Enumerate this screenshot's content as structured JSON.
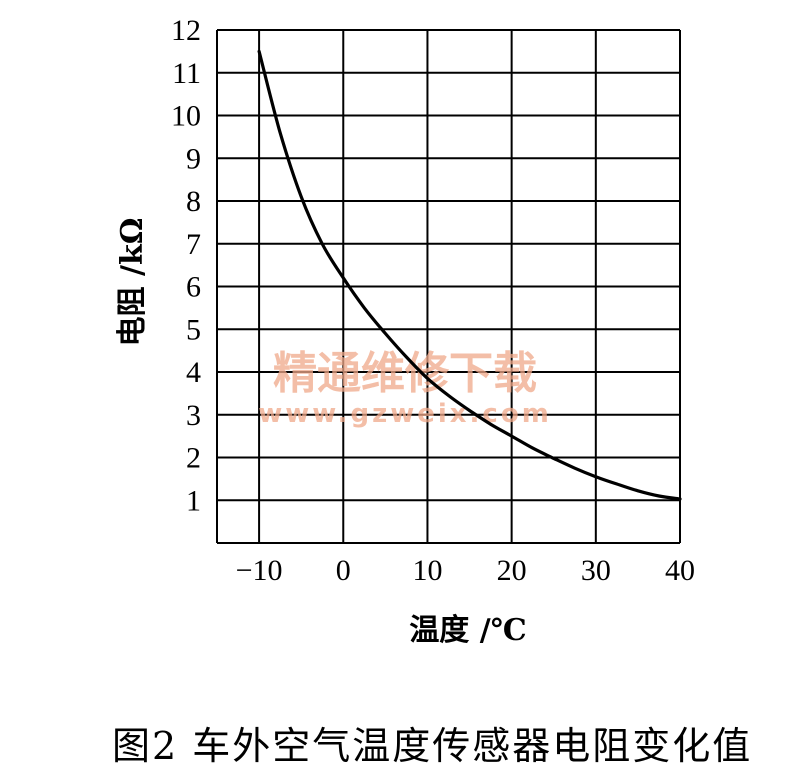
{
  "chart_data": {
    "type": "line",
    "xlabel": "温度 /℃",
    "ylabel": "电阻 /kΩ",
    "xlim": [
      -15,
      40
    ],
    "ylim": [
      0,
      12
    ],
    "x_ticks": [
      "-10",
      "0",
      "10",
      "20",
      "30",
      "40"
    ],
    "y_ticks": [
      "1",
      "2",
      "3",
      "4",
      "5",
      "6",
      "7",
      "8",
      "9",
      "10",
      "11",
      "12"
    ],
    "grid": true,
    "series": [
      {
        "x": [
          -10,
          -7.5,
          -5,
          -2.5,
          0,
          2.5,
          5,
          7.5,
          10,
          12.5,
          15,
          17.5,
          20,
          22.5,
          25,
          27.5,
          30,
          32.5,
          35,
          37.5,
          40
        ],
        "y": [
          11.5,
          9.6,
          8.1,
          7.0,
          6.2,
          5.5,
          4.9,
          4.35,
          3.85,
          3.45,
          3.1,
          2.78,
          2.5,
          2.22,
          1.98,
          1.75,
          1.55,
          1.38,
          1.22,
          1.1,
          1.03
        ],
        "color": "#000000"
      }
    ]
  },
  "watermark": {
    "title": "精通维修下载",
    "url": "www.gzweix.com",
    "color": "#f0a98a"
  },
  "caption": "图2   车外空气温度传感器电阻变化值"
}
